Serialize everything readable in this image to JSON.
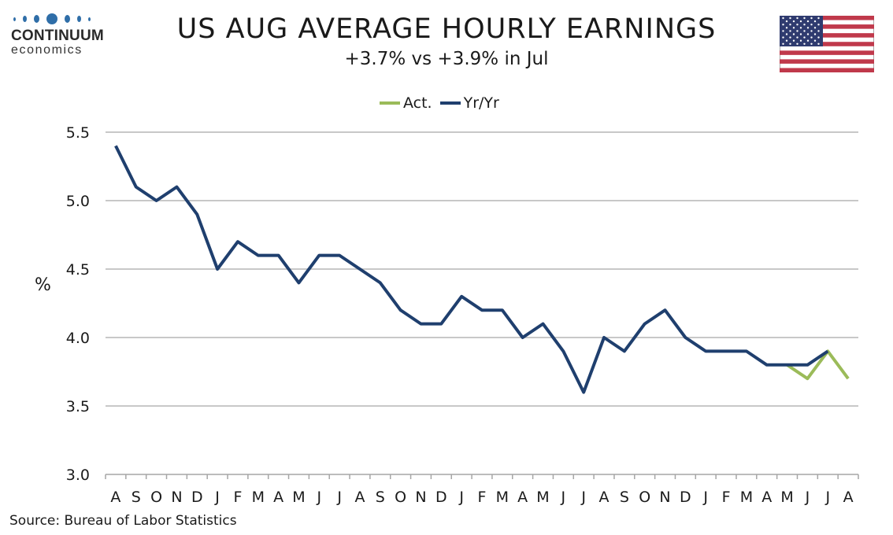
{
  "logo": {
    "word": "CONTINUUM",
    "sub": "economics",
    "dot_color": "#2f6ea8"
  },
  "header": {
    "title": "US AUG AVERAGE HOURLY EARNINGS",
    "subtitle": "+3.7% vs +3.9% in Jul"
  },
  "flag": {
    "icon": "us-flag-icon",
    "red": "#c0394b",
    "blue": "#2f3b6f"
  },
  "source": "Source: Bureau of Labor Statistics",
  "chart_data": {
    "type": "line",
    "title": "US AUG AVERAGE HOURLY EARNINGS",
    "subtitle": "+3.7% vs +3.9% in Jul",
    "xlabel": "",
    "ylabel": "%",
    "ylim": [
      3.0,
      5.5
    ],
    "yticks": [
      "3.0",
      "3.5",
      "4.0",
      "4.5",
      "5.0",
      "5.5"
    ],
    "grid": true,
    "legend_position": "top-center",
    "categories": [
      "A",
      "S",
      "O",
      "N",
      "D",
      "J",
      "F",
      "M",
      "A",
      "M",
      "J",
      "J",
      "A",
      "S",
      "O",
      "N",
      "D",
      "J",
      "F",
      "M",
      "A",
      "M",
      "J",
      "J",
      "A",
      "S",
      "O",
      "N",
      "D",
      "J",
      "F",
      "M",
      "A",
      "M",
      "J",
      "J",
      "A"
    ],
    "series": [
      {
        "name": "Act.",
        "color": "#9bbb59",
        "values": [
          null,
          null,
          null,
          null,
          null,
          null,
          null,
          null,
          null,
          null,
          null,
          null,
          null,
          null,
          null,
          null,
          null,
          null,
          null,
          null,
          null,
          null,
          null,
          null,
          null,
          null,
          null,
          null,
          null,
          null,
          null,
          null,
          null,
          3.8,
          3.7,
          3.9,
          3.7
        ]
      },
      {
        "name": "Yr/Yr",
        "color": "#1f3f6e",
        "values": [
          5.4,
          5.1,
          5.0,
          5.1,
          4.9,
          4.5,
          4.7,
          4.6,
          4.6,
          4.4,
          4.6,
          4.6,
          4.5,
          4.4,
          4.2,
          4.1,
          4.1,
          4.3,
          4.2,
          4.2,
          4.0,
          4.1,
          3.9,
          3.6,
          4.0,
          3.9,
          4.1,
          4.2,
          4.0,
          3.9,
          3.9,
          3.9,
          3.8,
          3.8,
          3.8,
          3.9,
          null
        ]
      }
    ]
  }
}
